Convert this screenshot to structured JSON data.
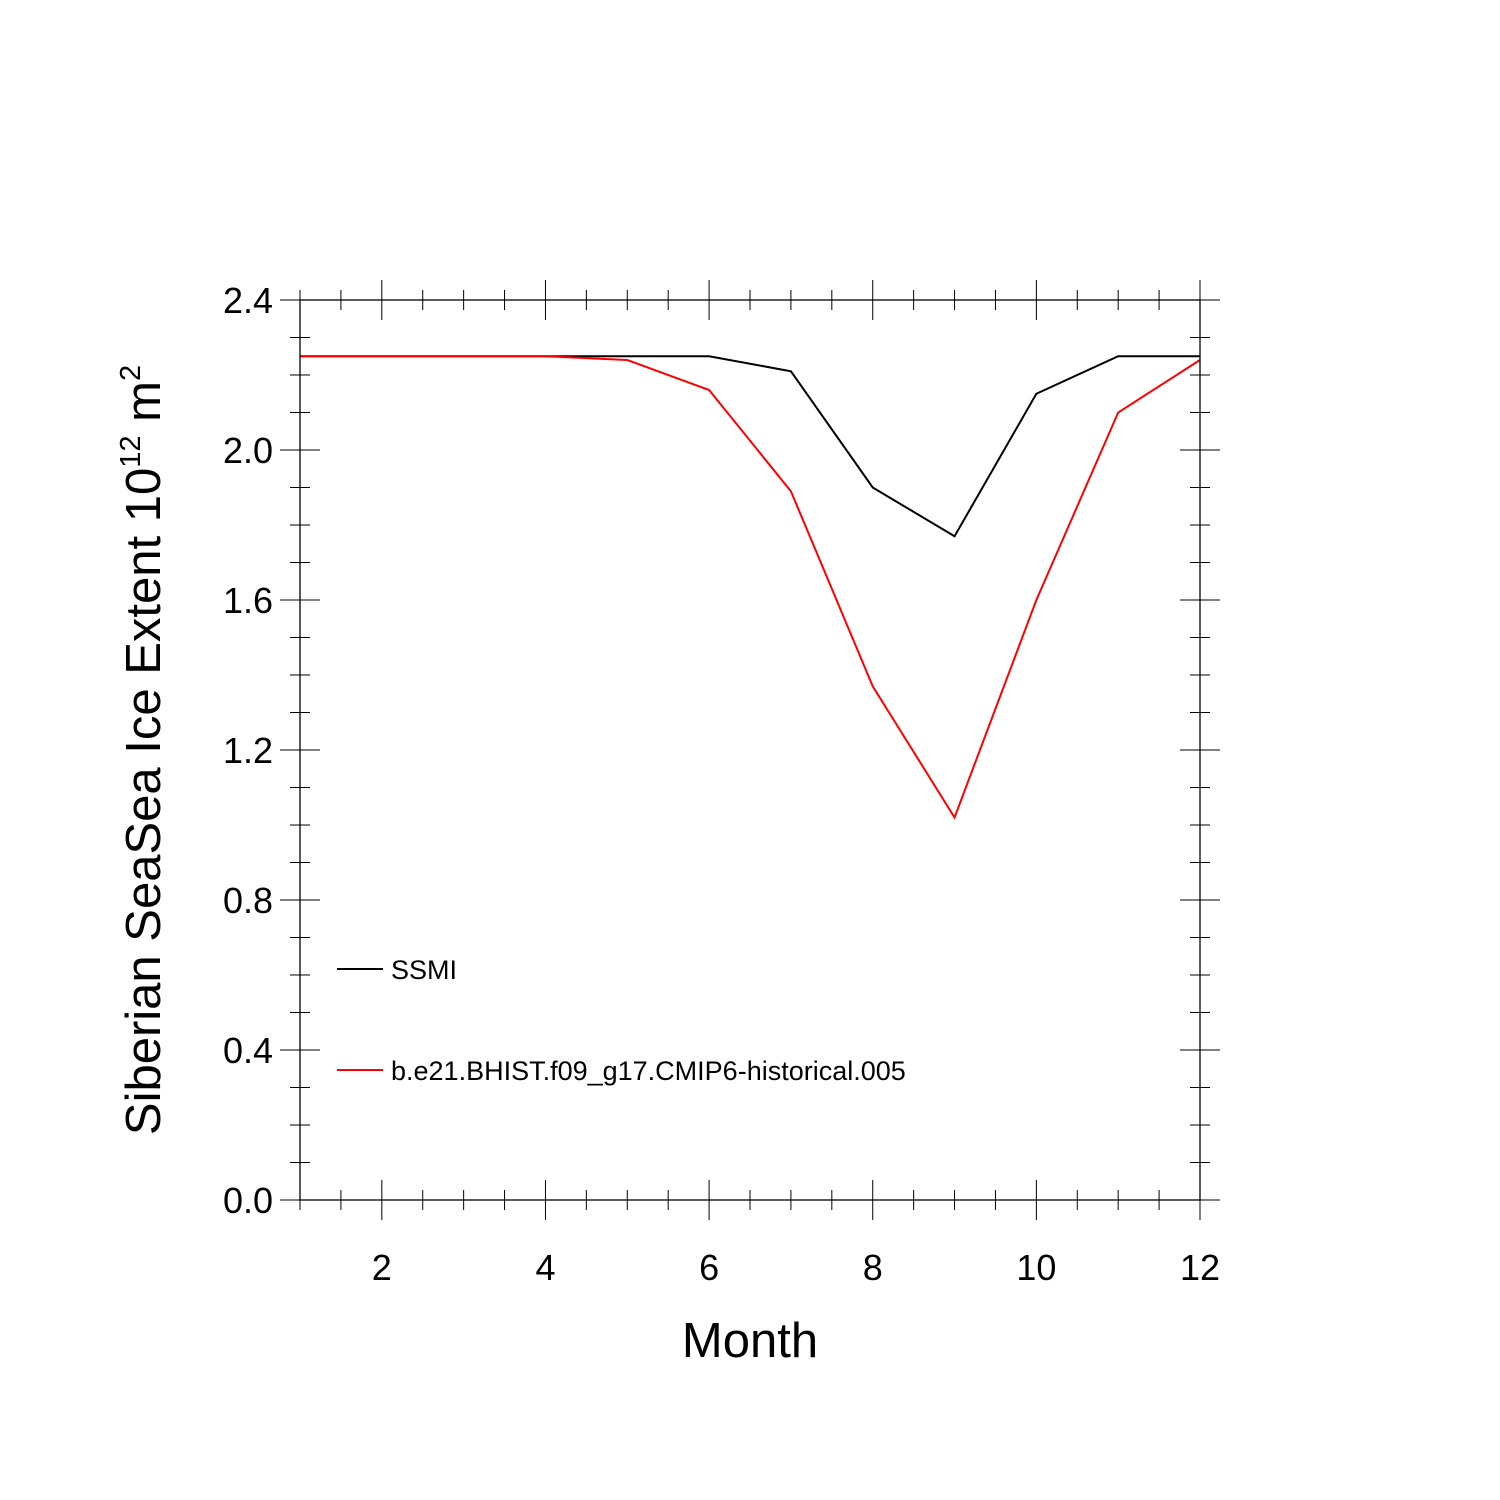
{
  "chart_data": {
    "type": "line",
    "xlabel": "Month",
    "ylabel": {
      "main": "Siberian SeaSea Ice Extent 10",
      "exp": "12",
      "unit": " m",
      "unit_exp": "2"
    },
    "xlim": [
      1,
      12
    ],
    "ylim": [
      0,
      2.4
    ],
    "xticks": [
      2,
      4,
      6,
      8,
      10,
      12
    ],
    "xtick_labels": [
      "2",
      "4",
      "6",
      "8",
      "10",
      "12"
    ],
    "yticks": [
      0.0,
      0.4,
      0.8,
      1.2,
      1.6,
      2.0,
      2.4
    ],
    "ytick_labels": [
      "0.0",
      "0.4",
      "0.8",
      "1.2",
      "1.6",
      "2.0",
      "2.4"
    ],
    "x": [
      1,
      2,
      3,
      4,
      5,
      6,
      7,
      8,
      9,
      10,
      11,
      12
    ],
    "grid": false,
    "legend_position": "bottom-left",
    "series": [
      {
        "name": "SSMI",
        "color": "#000000",
        "values": [
          2.25,
          2.25,
          2.25,
          2.25,
          2.25,
          2.25,
          2.21,
          1.9,
          1.77,
          2.15,
          2.25,
          2.25
        ]
      },
      {
        "name": "b.e21.BHIST.f09_g17.CMIP6-historical.005",
        "color": "#ff0000",
        "values": [
          2.25,
          2.25,
          2.25,
          2.25,
          2.24,
          2.16,
          1.89,
          1.37,
          1.02,
          1.6,
          2.1,
          2.24
        ]
      }
    ]
  }
}
